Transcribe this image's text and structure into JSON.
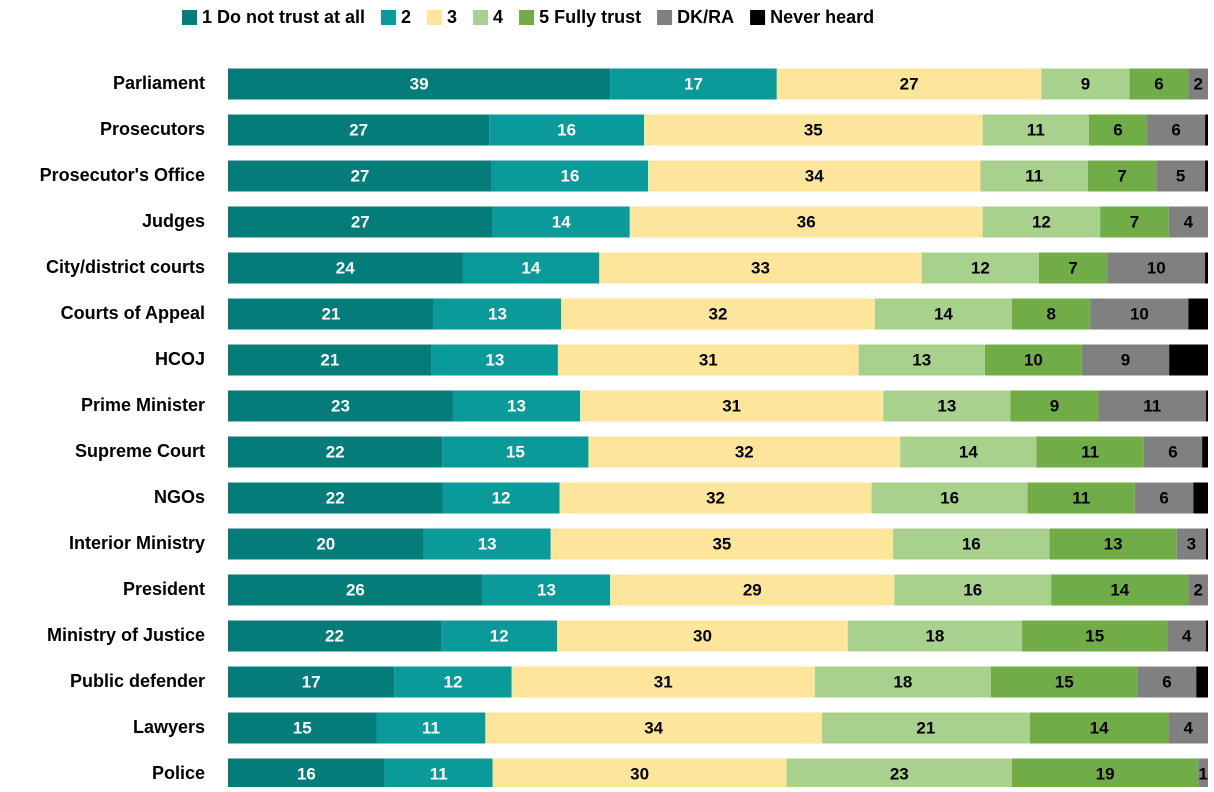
{
  "chart_data": {
    "type": "stacked_bar_horizontal",
    "mode": "percent",
    "categories": [
      "Parliament",
      "Prosecutors",
      "Prosecutor's Office",
      "Judges",
      "City/district courts",
      "Courts of Appeal",
      "HCOJ",
      "Prime Minister",
      "Supreme Court",
      "NGOs",
      "Interior Ministry",
      "President",
      "Ministry of Justice",
      "Public defender",
      "Lawyers",
      "Police"
    ],
    "series": [
      {
        "name": "1 Do not trust at all",
        "color": "#037c7a",
        "label_color": "#ffffff",
        "show_labels": true,
        "values": [
          39,
          27,
          27,
          27,
          24,
          21,
          21,
          23,
          22,
          22,
          20,
          26,
          22,
          17,
          15,
          16
        ]
      },
      {
        "name": "2",
        "color": "#0a9a9a",
        "label_color": "#ffffff",
        "show_labels": true,
        "values": [
          17,
          16,
          16,
          14,
          14,
          13,
          13,
          13,
          15,
          12,
          13,
          13,
          12,
          12,
          11,
          11
        ]
      },
      {
        "name": "3",
        "color": "#fde69b",
        "label_color": "#000000",
        "show_labels": true,
        "values": [
          27,
          35,
          34,
          36,
          33,
          32,
          31,
          31,
          32,
          32,
          35,
          29,
          30,
          31,
          34,
          30
        ]
      },
      {
        "name": "4",
        "color": "#a9d18e",
        "label_color": "#000000",
        "show_labels": true,
        "values": [
          9,
          11,
          11,
          12,
          12,
          14,
          13,
          13,
          14,
          16,
          16,
          16,
          18,
          18,
          21,
          23
        ]
      },
      {
        "name": "5 Fully trust",
        "color": "#70ad47",
        "label_color": "#000000",
        "show_labels": true,
        "values": [
          6,
          6,
          7,
          7,
          7,
          8,
          10,
          9,
          11,
          11,
          13,
          14,
          15,
          15,
          14,
          19
        ]
      },
      {
        "name": "DK/RA",
        "color": "#808080",
        "label_color": "#000000",
        "show_labels": true,
        "values": [
          2,
          6,
          5,
          4,
          10,
          10,
          9,
          11,
          6,
          6,
          3,
          2,
          4,
          6,
          4,
          1
        ]
      },
      {
        "name": "Never heard",
        "color": "#000000",
        "label_color": "#ffffff",
        "show_labels": false,
        "values": [
          0,
          0.3,
          0.3,
          0,
          0.3,
          2,
          4,
          0.2,
          0.6,
          1.5,
          0.2,
          0,
          0.2,
          1.2,
          0,
          0
        ]
      }
    ]
  }
}
